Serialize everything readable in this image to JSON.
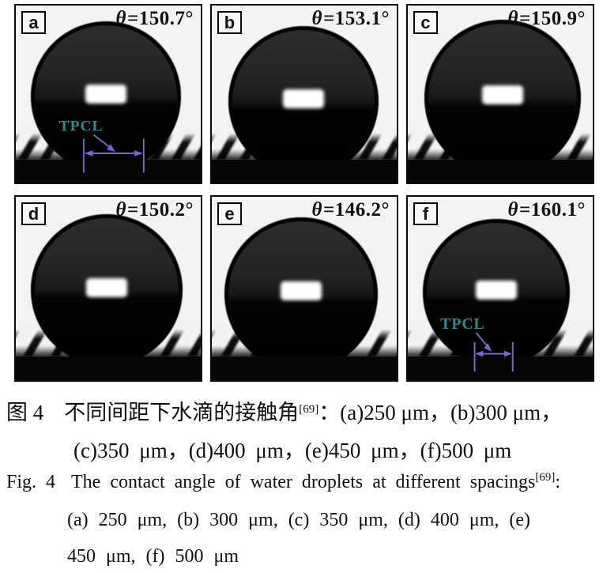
{
  "figure": {
    "theta_symbol": "θ",
    "panels": [
      {
        "letter": "a",
        "theta_value": "=150.7°",
        "spacing_um": 250,
        "tpcl_label": "TPCL"
      },
      {
        "letter": "b",
        "theta_value": "=153.1°",
        "spacing_um": 300
      },
      {
        "letter": "c",
        "theta_value": "=150.9°",
        "spacing_um": 350
      },
      {
        "letter": "d",
        "theta_value": "=150.2°",
        "spacing_um": 400
      },
      {
        "letter": "e",
        "theta_value": "=146.2°",
        "spacing_um": 450
      },
      {
        "letter": "f",
        "theta_value": "=160.1°",
        "spacing_um": 500,
        "tpcl_label": "TPCL"
      }
    ],
    "colors": {
      "tpcl_text": "#2e8c8c",
      "annotation": "#7a66c6"
    }
  },
  "caption_zh": {
    "fig_label": "图 4",
    "text": "不同间距下水滴的接触角",
    "ref_sup": "[69]",
    "after_ref": "：(a)250 μm，(b)300 μm，",
    "line2": "(c)350 μm，(d)400 μm，(e)450 μm，(f)500 μm"
  },
  "caption_en": {
    "fig_label": "Fig. 4",
    "text": "The contact angle of water droplets at different spacings",
    "ref_sup": "[69]",
    "colon": ":",
    "line2": "(a) 250 μm, (b) 300 μm, (c) 350 μm, (d) 400 μm, (e)",
    "line3": "450 μm, (f) 500 μm"
  }
}
